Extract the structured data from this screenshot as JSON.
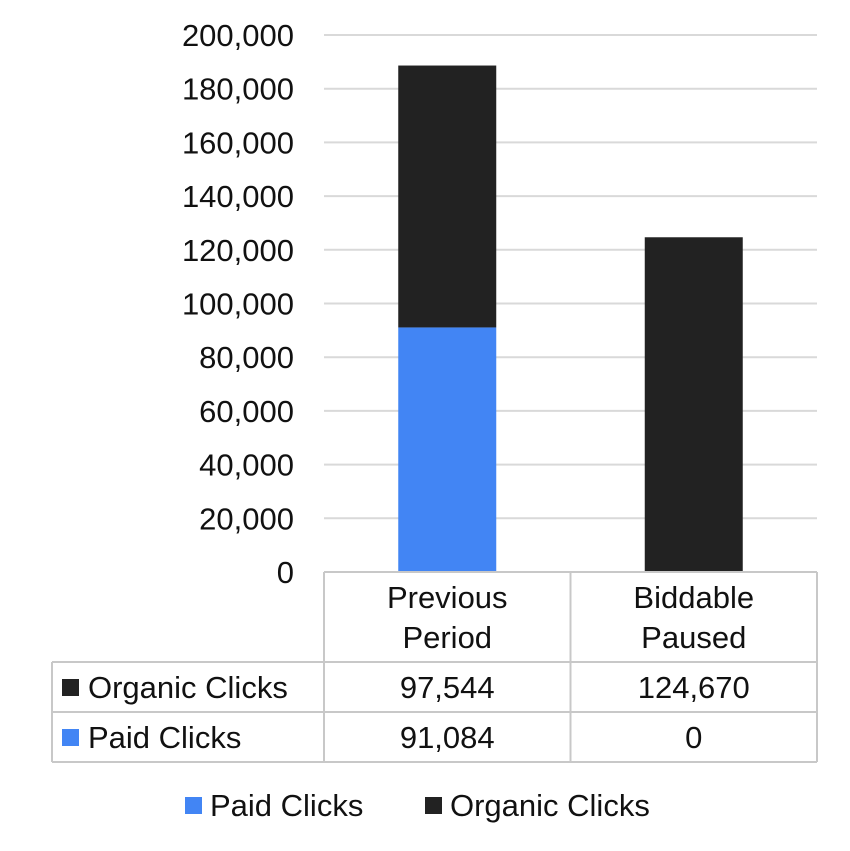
{
  "chart_data": {
    "type": "bar",
    "stacked": true,
    "categories": [
      [
        "Previous",
        "Period"
      ],
      [
        "Biddable",
        "Paused"
      ]
    ],
    "series": [
      {
        "name": "Paid Clicks",
        "values": [
          91084,
          0
        ],
        "color": "#4285F4",
        "labels": [
          "91,084",
          "0"
        ]
      },
      {
        "name": "Organic Clicks",
        "values": [
          97544,
          124670
        ],
        "color": "#222222",
        "labels": [
          "97,544",
          "124,670"
        ]
      }
    ],
    "ylim": [
      0,
      200000
    ],
    "yticks": [
      0,
      20000,
      40000,
      60000,
      80000,
      100000,
      120000,
      140000,
      160000,
      180000,
      200000
    ],
    "ytick_labels": [
      "0",
      "20,000",
      "40,000",
      "60,000",
      "80,000",
      "100,000",
      "120,000",
      "140,000",
      "160,000",
      "180,000",
      "200,000"
    ],
    "grid": true,
    "data_table": true,
    "data_table_row_order": [
      "Organic Clicks",
      "Paid Clicks"
    ],
    "legend": {
      "position": "bottom",
      "order": [
        "Paid Clicks",
        "Organic Clicks"
      ]
    },
    "gridline_color": "#d9d9d9",
    "table_border_color": "#c8c8c8"
  }
}
